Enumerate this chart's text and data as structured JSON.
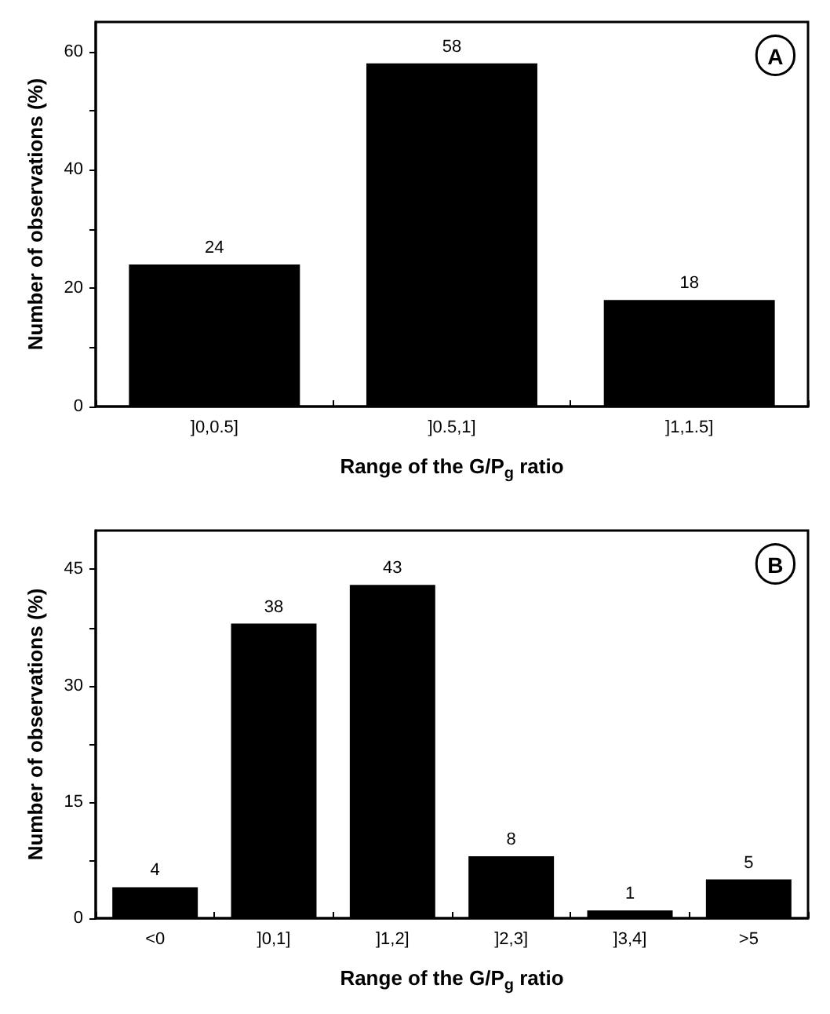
{
  "chart_data": [
    {
      "type": "bar",
      "xlabel": "Range of the G/P$_{g}$ ratio",
      "ylabel": "Number of observations (%)",
      "categories": [
        "]0,0.5]",
        "]0.5,1]",
        "]1,1.5]"
      ],
      "values": [
        24,
        58,
        18
      ],
      "color": "#000000",
      "data_labels": true,
      "ylim": [
        0,
        65
      ],
      "yticks": [
        0,
        {
          "value": 10,
          "label": null
        },
        20,
        {
          "value": 30,
          "label": null
        },
        40,
        {
          "value": 50,
          "label": null
        },
        60
      ],
      "grid": false,
      "annotations": [
        "A"
      ]
    },
    {
      "type": "bar",
      "xlabel": "Range of the G/P$_{g}$ ratio",
      "ylabel": "Number of observations (%)",
      "categories": [
        "<0",
        "]0,1]",
        "]1,2]",
        "]2,3]",
        "]3,4]",
        ">5"
      ],
      "values": [
        4,
        38,
        43,
        8,
        1,
        5
      ],
      "color": "#000000",
      "data_labels": true,
      "ylim": [
        0,
        50
      ],
      "yticks": [
        0,
        {
          "value": 7.5,
          "label": null
        },
        15,
        {
          "value": 22.5,
          "label": null
        },
        30,
        {
          "value": 37.5,
          "label": null
        },
        45
      ],
      "grid": false,
      "annotations": [
        "B"
      ]
    }
  ]
}
